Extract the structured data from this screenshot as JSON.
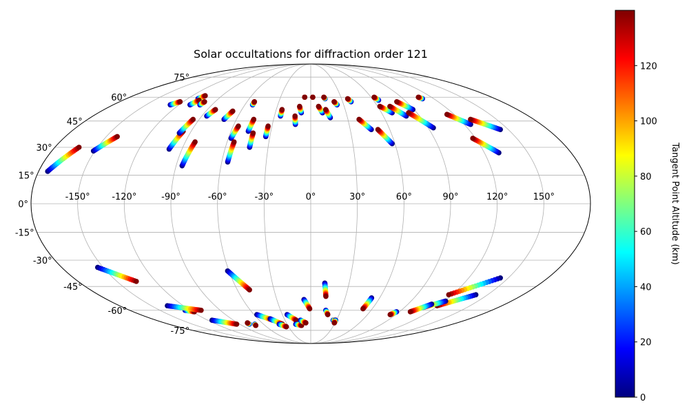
{
  "chart_data": {
    "type": "scatter",
    "projection": "mollweide",
    "title": "Solar occultations for diffraction order 121",
    "lon_ticks": [
      {
        "value": -150,
        "label": "-150°"
      },
      {
        "value": -120,
        "label": "-120°"
      },
      {
        "value": -90,
        "label": "-90°"
      },
      {
        "value": -60,
        "label": "-60°"
      },
      {
        "value": -30,
        "label": "-30°"
      },
      {
        "value": 0,
        "label": "0°"
      },
      {
        "value": 30,
        "label": "30°"
      },
      {
        "value": 60,
        "label": "60°"
      },
      {
        "value": 90,
        "label": "90°"
      },
      {
        "value": 120,
        "label": "120°"
      },
      {
        "value": 150,
        "label": "150°"
      }
    ],
    "lat_ticks": [
      {
        "value": 75,
        "label": "75°"
      },
      {
        "value": 60,
        "label": "60°"
      },
      {
        "value": 45,
        "label": "45°"
      },
      {
        "value": 30,
        "label": "30°"
      },
      {
        "value": 15,
        "label": "15°"
      },
      {
        "value": 0,
        "label": "0°"
      },
      {
        "value": -15,
        "label": "-15°"
      },
      {
        "value": -30,
        "label": "-30°"
      },
      {
        "value": -45,
        "label": "-45°"
      },
      {
        "value": -60,
        "label": "-60°"
      },
      {
        "value": -75,
        "label": "-75°"
      }
    ],
    "grid": true,
    "colorbar": {
      "label": "Tangent Point Altitude (km)",
      "range": [
        0,
        140
      ],
      "colormap": "jet",
      "ticks": [
        {
          "value": 0,
          "label": "0"
        },
        {
          "value": 20,
          "label": "20"
        },
        {
          "value": 40,
          "label": "40"
        },
        {
          "value": 60,
          "label": "60"
        },
        {
          "value": 80,
          "label": "80"
        },
        {
          "value": 100,
          "label": "100"
        },
        {
          "value": 120,
          "label": "120"
        }
      ]
    },
    "altitude_range": [
      0,
      140
    ],
    "tracks": [
      {
        "start": [
          -174,
          17
        ],
        "end": [
          -163,
          30
        ]
      },
      {
        "start": [
          -151,
          28
        ],
        "end": [
          -142,
          36
        ]
      },
      {
        "start": [
          -128,
          55
        ],
        "end": [
          -123,
          57
        ]
      },
      {
        "start": [
          -110,
          59
        ],
        "end": [
          -107,
          61
        ]
      },
      {
        "start": [
          -110,
          55
        ],
        "end": [
          -107,
          58
        ]
      },
      {
        "start": [
          -101,
          55
        ],
        "end": [
          -100,
          57
        ]
      },
      {
        "start": [
          -99,
          29
        ],
        "end": [
          -96,
          39
        ]
      },
      {
        "start": [
          -98,
          38
        ],
        "end": [
          -95,
          46
        ]
      },
      {
        "start": [
          -86,
          20
        ],
        "end": [
          -83,
          33
        ]
      },
      {
        "start": [
          -86,
          48
        ],
        "end": [
          -83,
          52
        ]
      },
      {
        "start": [
          -70,
          46
        ],
        "end": [
          -67,
          51
        ]
      },
      {
        "start": [
          -58,
          35
        ],
        "end": [
          -56,
          42
        ]
      },
      {
        "start": [
          -56,
          22
        ],
        "end": [
          -55,
          33
        ]
      },
      {
        "start": [
          -53,
          55
        ],
        "end": [
          -53,
          57
        ]
      },
      {
        "start": [
          -47,
          39
        ],
        "end": [
          -46,
          46
        ]
      },
      {
        "start": [
          -43,
          30
        ],
        "end": [
          -43,
          38
        ]
      },
      {
        "start": [
          -33,
          36
        ],
        "end": [
          -33,
          42
        ]
      },
      {
        "start": [
          -25,
          48
        ],
        "end": [
          -25,
          52
        ]
      },
      {
        "start": [
          -12,
          43
        ],
        "end": [
          -13,
          48
        ]
      },
      {
        "start": [
          -8,
          50
        ],
        "end": [
          -10,
          54
        ]
      },
      {
        "start": [
          -6,
          60
        ],
        "end": [
          -6,
          60
        ]
      },
      {
        "start": [
          2,
          60
        ],
        "end": [
          2,
          60
        ]
      },
      {
        "start": [
          10,
          50
        ],
        "end": [
          7,
          54
        ]
      },
      {
        "start": [
          14,
          59
        ],
        "end": [
          13,
          60
        ]
      },
      {
        "start": [
          16,
          47
        ],
        "end": [
          13,
          52
        ]
      },
      {
        "start": [
          24,
          55
        ],
        "end": [
          22,
          57
        ]
      },
      {
        "start": [
          38,
          57
        ],
        "end": [
          36,
          59
        ]
      },
      {
        "start": [
          46,
          40
        ],
        "end": [
          39,
          46
        ]
      },
      {
        "start": [
          58,
          32
        ],
        "end": [
          51,
          40
        ]
      },
      {
        "start": [
          65,
          58
        ],
        "end": [
          63,
          60
        ]
      },
      {
        "start": [
          69,
          50
        ],
        "end": [
          62,
          54
        ]
      },
      {
        "start": [
          79,
          48
        ],
        "end": [
          71,
          54
        ]
      },
      {
        "start": [
          89,
          52
        ],
        "end": [
          81,
          57
        ]
      },
      {
        "start": [
          94,
          41
        ],
        "end": [
          83,
          50
        ]
      },
      {
        "start": [
          109,
          59
        ],
        "end": [
          107,
          60
        ]
      },
      {
        "start": [
          125,
          43
        ],
        "end": [
          114,
          49
        ]
      },
      {
        "start": [
          144,
          40
        ],
        "end": [
          129,
          46
        ]
      },
      {
        "start": [
          130,
          27
        ],
        "end": [
          118,
          35
        ]
      },
      {
        "start": [
          -154,
          -34
        ],
        "end": [
          -135,
          -42
        ]
      },
      {
        "start": [
          -125,
          -60
        ],
        "end": [
          -118,
          -61
        ]
      },
      {
        "start": [
          -135,
          -57
        ],
        "end": [
          -109,
          -60
        ]
      },
      {
        "start": [
          -115,
          -67
        ],
        "end": [
          -94,
          -70
        ]
      },
      {
        "start": [
          -78,
          -70
        ],
        "end": [
          -78,
          -69
        ]
      },
      {
        "start": [
          -71,
          -70
        ],
        "end": [
          -72,
          -71
        ]
      },
      {
        "start": [
          -61,
          -36
        ],
        "end": [
          -50,
          -47
        ]
      },
      {
        "start": [
          -57,
          -63
        ],
        "end": [
          -44,
          -67
        ]
      },
      {
        "start": [
          -46,
          -66
        ],
        "end": [
          -36,
          -70
        ]
      },
      {
        "start": [
          -40,
          -70
        ],
        "end": [
          -33,
          -72
        ]
      },
      {
        "start": [
          -25,
          -63
        ],
        "end": [
          -17,
          -67
        ]
      },
      {
        "start": [
          -19,
          -70
        ],
        "end": [
          -12,
          -71
        ]
      },
      {
        "start": [
          -12,
          -67
        ],
        "end": [
          -6,
          -69
        ]
      },
      {
        "start": [
          -6,
          -53
        ],
        "end": [
          -1,
          -59
        ]
      },
      {
        "start": [
          11,
          -43
        ],
        "end": [
          13,
          -51
        ]
      },
      {
        "start": [
          15,
          -60
        ],
        "end": [
          18,
          -63
        ]
      },
      {
        "start": [
          26,
          -67
        ],
        "end": [
          29,
          -67
        ]
      },
      {
        "start": [
          29,
          -67
        ],
        "end": [
          29,
          -69
        ]
      },
      {
        "start": [
          53,
          -52
        ],
        "end": [
          51,
          -59
        ]
      },
      {
        "start": [
          87,
          -61
        ],
        "end": [
          84,
          -63
        ]
      },
      {
        "start": [
          140,
          -50
        ],
        "end": [
          119,
          -57
        ]
      },
      {
        "start": [
          144,
          -40
        ],
        "end": [
          117,
          -50
        ]
      },
      {
        "start": [
          121,
          -54
        ],
        "end": [
          108,
          -58
        ]
      },
      {
        "start": [
          112,
          -56
        ],
        "end": [
          101,
          -61
        ]
      }
    ]
  }
}
